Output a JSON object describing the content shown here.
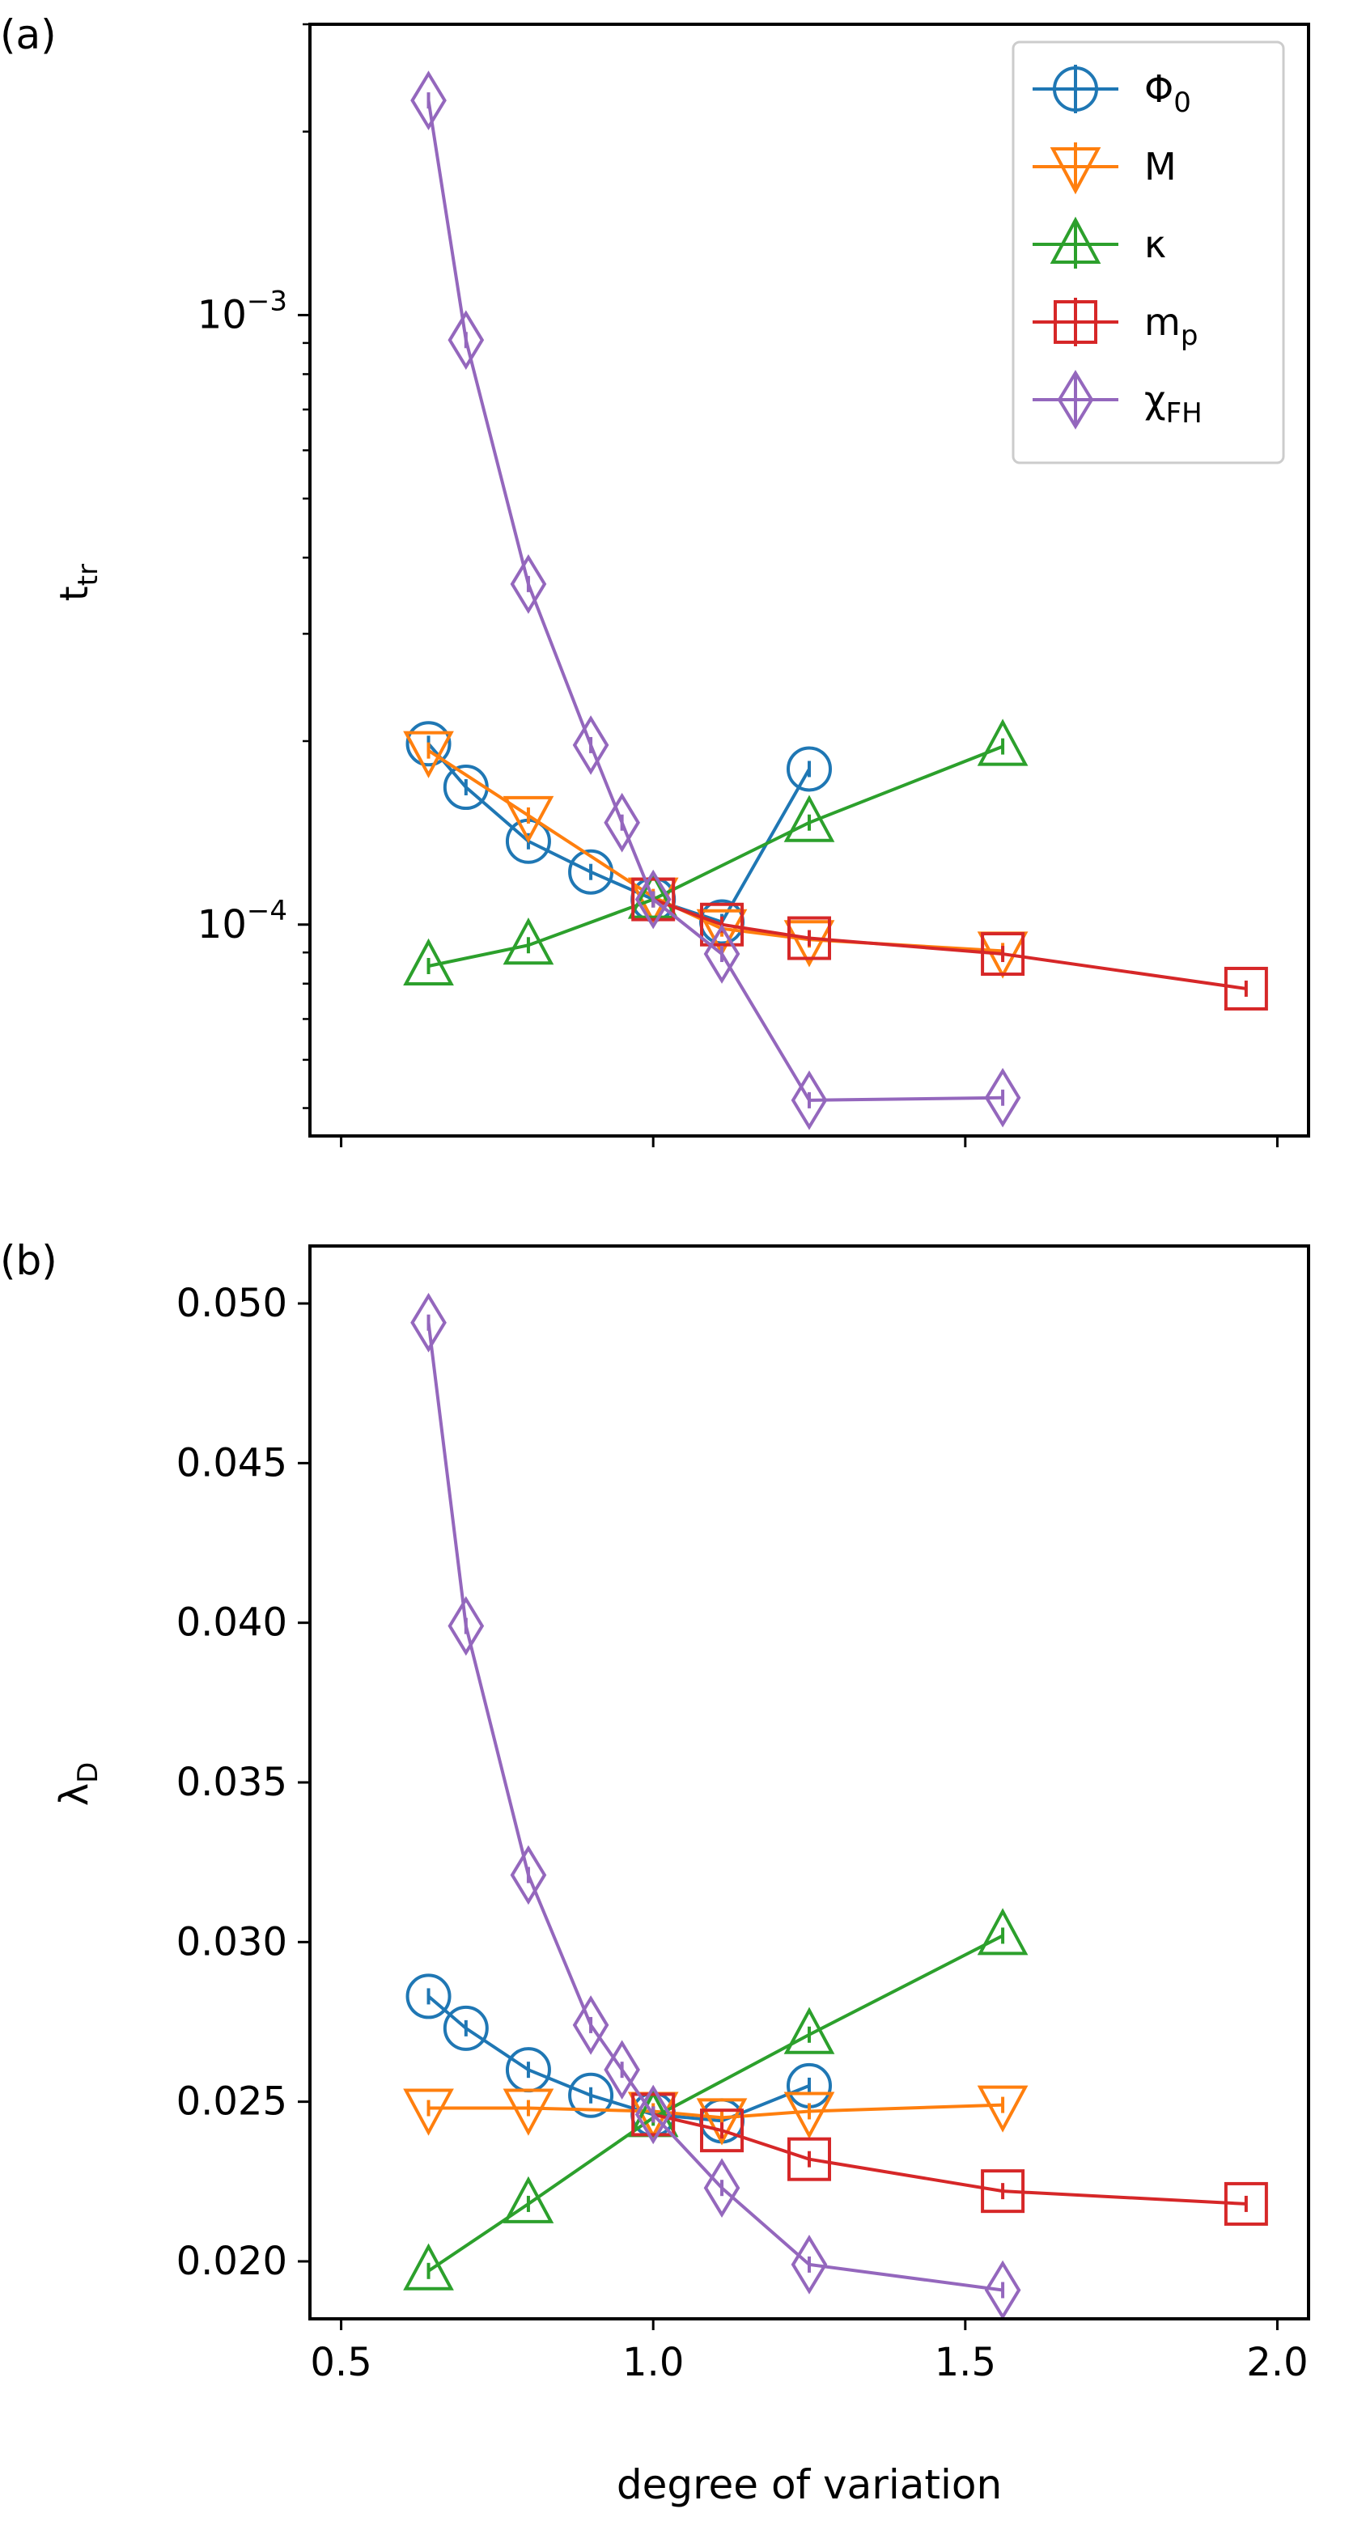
{
  "chart_data": [
    {
      "panel": "(a)",
      "type": "line",
      "yscale": "log",
      "ylabel": "t",
      "ylabel_sub": "tr",
      "xlabel": "",
      "xlim": [
        0.45,
        2.05
      ],
      "ylim": [
        4.5e-05,
        0.003
      ],
      "xticks": [
        0.5,
        1.0,
        1.5,
        2.0
      ],
      "yticks": [
        {
          "value": 0.0001,
          "base": "10",
          "exp": "−4"
        },
        {
          "value": 0.001,
          "base": "10",
          "exp": "−3"
        }
      ],
      "legend_position": "top-right",
      "series": [
        {
          "name": "Φ",
          "sub": "0",
          "marker": "circle",
          "color": "#1f77b4",
          "x": [
            0.64,
            0.7,
            0.8,
            0.9,
            1.0,
            1.11,
            1.25
          ],
          "y": [
            0.000198,
            0.000168,
            0.000137,
            0.000122,
            0.00011,
            0.000101,
            0.00018
          ]
        },
        {
          "name": "M",
          "sub": "",
          "marker": "triangle-down",
          "color": "#ff7f0e",
          "x": [
            0.64,
            0.8,
            1.0,
            1.11,
            1.25,
            1.56
          ],
          "y": [
            0.000193,
            0.000151,
            0.000111,
            9.85e-05,
            9.45e-05,
            9.05e-05
          ]
        },
        {
          "name": "κ",
          "sub": "",
          "marker": "triangle-up",
          "color": "#2ca02c",
          "x": [
            0.64,
            0.8,
            1.0,
            1.25,
            1.56
          ],
          "y": [
            8.55e-05,
            9.25e-05,
            0.00011,
            0.000147,
            0.000196
          ]
        },
        {
          "name": "m",
          "sub": "p",
          "marker": "square",
          "color": "#d62728",
          "x": [
            1.0,
            1.11,
            1.25,
            1.56,
            1.95
          ],
          "y": [
            0.00011,
            0.0001,
            9.5e-05,
            8.95e-05,
            7.85e-05
          ]
        },
        {
          "name": "χ",
          "sub": "FH",
          "marker": "diamond",
          "color": "#9467bd",
          "x": [
            0.64,
            0.7,
            0.8,
            0.9,
            0.95,
            1.0,
            1.11,
            1.25,
            1.56
          ],
          "y": [
            0.00225,
            0.00091,
            0.000362,
            0.000197,
            0.000147,
            0.00011,
            8.95e-05,
            5.15e-05,
            5.2e-05
          ]
        }
      ]
    },
    {
      "panel": "(b)",
      "type": "line",
      "yscale": "linear",
      "ylabel": "λ",
      "ylabel_sub": "D",
      "xlabel": "degree of variation",
      "xlim": [
        0.45,
        2.05
      ],
      "ylim": [
        0.0182,
        0.0518
      ],
      "xticks": [
        0.5,
        1.0,
        1.5,
        2.0
      ],
      "xtick_labels": [
        "0.5",
        "1.0",
        "1.5",
        "2.0"
      ],
      "yticks": [
        0.02,
        0.025,
        0.03,
        0.035,
        0.04,
        0.045,
        0.05
      ],
      "ytick_labels": [
        "0.020",
        "0.025",
        "0.030",
        "0.035",
        "0.040",
        "0.045",
        "0.050"
      ],
      "series": [
        {
          "name": "Φ0",
          "marker": "circle",
          "color": "#1f77b4",
          "x": [
            0.64,
            0.7,
            0.8,
            0.9,
            1.0,
            1.11,
            1.25
          ],
          "y": [
            0.0283,
            0.0273,
            0.026,
            0.0252,
            0.0246,
            0.0244,
            0.0255
          ]
        },
        {
          "name": "M",
          "marker": "triangle-down",
          "color": "#ff7f0e",
          "x": [
            0.64,
            0.8,
            1.0,
            1.11,
            1.25,
            1.56
          ],
          "y": [
            0.0248,
            0.0248,
            0.0247,
            0.0245,
            0.0247,
            0.0249
          ]
        },
        {
          "name": "κ",
          "marker": "triangle-up",
          "color": "#2ca02c",
          "x": [
            0.64,
            0.8,
            1.0,
            1.25,
            1.56
          ],
          "y": [
            0.0197,
            0.0218,
            0.0245,
            0.0271,
            0.0302
          ]
        },
        {
          "name": "mp",
          "marker": "square",
          "color": "#d62728",
          "x": [
            1.0,
            1.11,
            1.25,
            1.56,
            1.95
          ],
          "y": [
            0.0246,
            0.0241,
            0.0232,
            0.0222,
            0.0218
          ]
        },
        {
          "name": "χFH",
          "marker": "diamond",
          "color": "#9467bd",
          "x": [
            0.64,
            0.7,
            0.8,
            0.9,
            0.95,
            1.0,
            1.11,
            1.25,
            1.56
          ],
          "y": [
            0.0494,
            0.0399,
            0.0321,
            0.0274,
            0.026,
            0.0246,
            0.0223,
            0.0199,
            0.0191
          ]
        }
      ]
    }
  ]
}
